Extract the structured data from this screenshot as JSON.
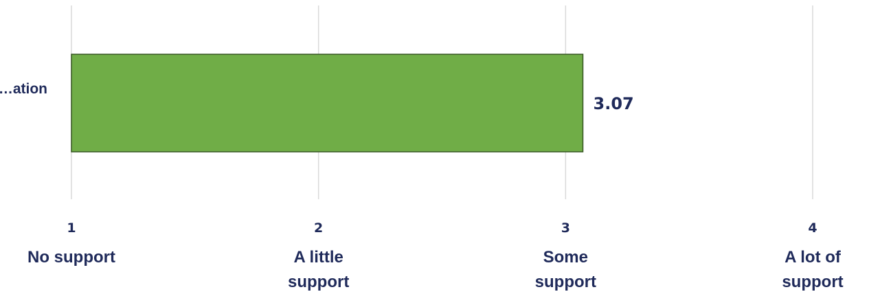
{
  "chart_data": {
    "type": "bar",
    "orientation": "horizontal",
    "categories": [
      "…ation"
    ],
    "values": [
      3.07
    ],
    "data_labels": [
      "3.07"
    ],
    "xlim": [
      1,
      4
    ],
    "x_ticks": [
      {
        "value": 1,
        "number": "1",
        "lines": [
          "No support"
        ]
      },
      {
        "value": 2,
        "number": "2",
        "lines": [
          "A little",
          "support"
        ]
      },
      {
        "value": 3,
        "number": "3",
        "lines": [
          "Some",
          "support"
        ]
      },
      {
        "value": 4,
        "number": "4",
        "lines": [
          "A lot of",
          "support"
        ]
      }
    ],
    "grid": true,
    "legend": "none",
    "colors": {
      "bar_fill": "#70AD47",
      "bar_stroke": "#375623",
      "text": "#1F2A5A",
      "grid": "#D9D9D9"
    }
  }
}
